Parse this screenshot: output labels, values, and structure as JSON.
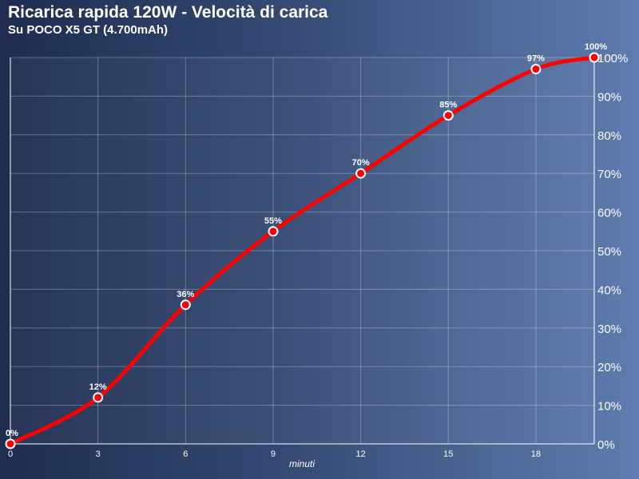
{
  "chart_data": {
    "type": "line",
    "title": "Ricarica rapida 120W - Velocità di carica",
    "subtitle": "Su POCO X5 GT (4.700mAh)",
    "xlabel": "minuti",
    "ylabel": "",
    "x_ticks": [
      0,
      3,
      6,
      9,
      12,
      15,
      18
    ],
    "y_ticks": [
      "0%",
      "10%",
      "20%",
      "30%",
      "40%",
      "50%",
      "60%",
      "70%",
      "80%",
      "90%",
      "100%"
    ],
    "xlim": [
      0,
      20
    ],
    "ylim": [
      0,
      100
    ],
    "y_axis_position": "right",
    "grid": true,
    "legend": "none",
    "series": [
      {
        "x": [
          0,
          3,
          6,
          9,
          12,
          15,
          18,
          20
        ],
        "values": [
          0,
          12,
          36,
          55,
          70,
          85,
          97,
          100
        ],
        "labels": [
          "0%",
          "12%",
          "36%",
          "55%",
          "70%",
          "85%",
          "97%",
          "100%"
        ],
        "color": "#ff0000"
      }
    ]
  }
}
